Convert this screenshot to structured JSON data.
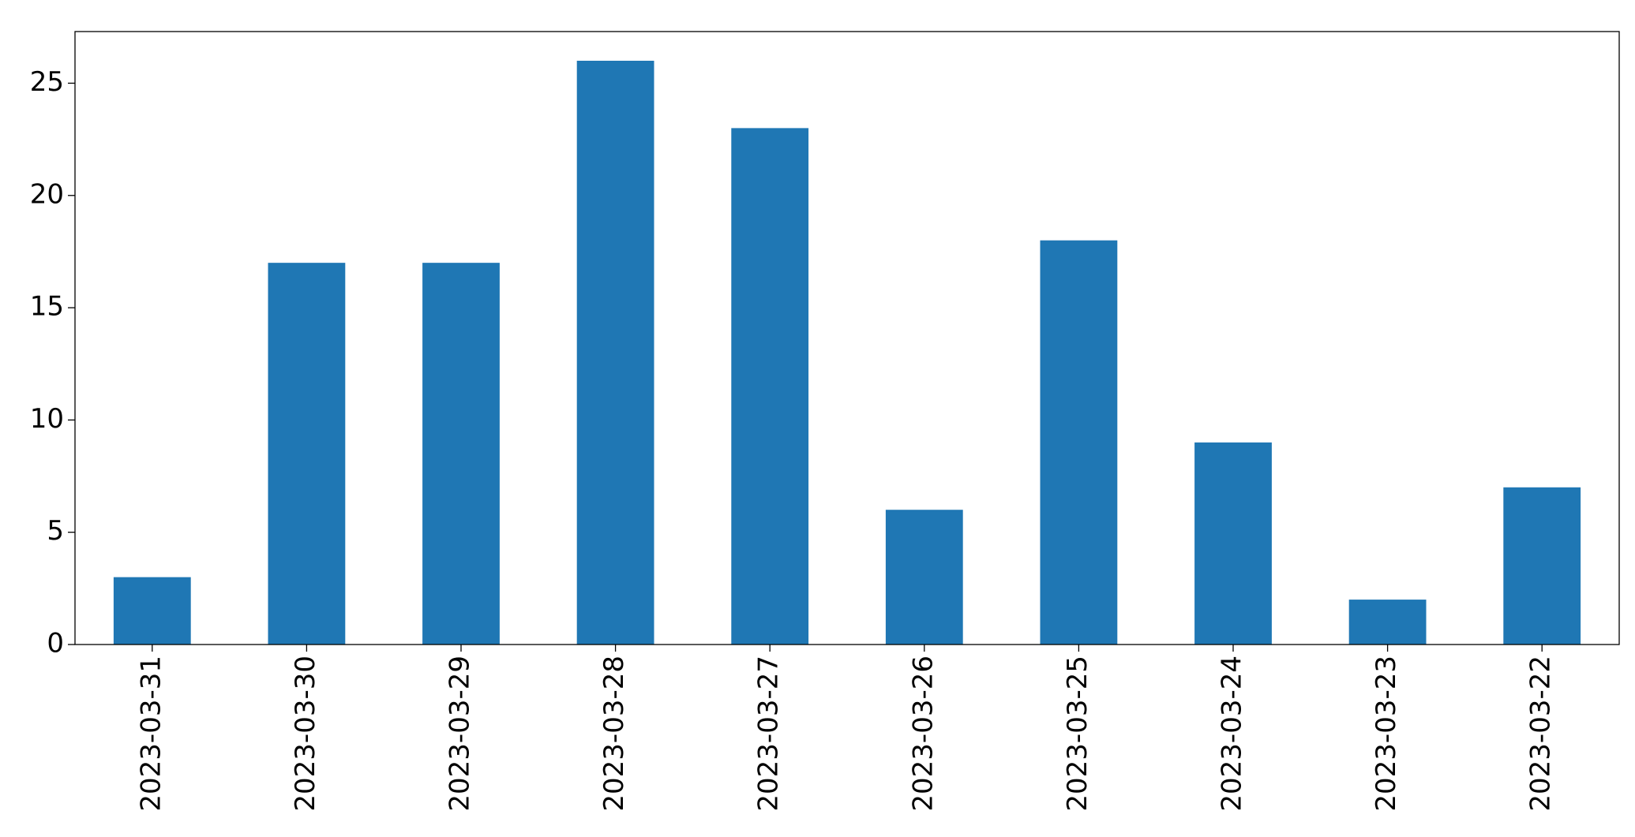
{
  "chart_data": {
    "type": "bar",
    "categories": [
      "2023-03-31",
      "2023-03-30",
      "2023-03-29",
      "2023-03-28",
      "2023-03-27",
      "2023-03-26",
      "2023-03-25",
      "2023-03-24",
      "2023-03-23",
      "2023-03-22"
    ],
    "values": [
      3,
      17,
      17,
      26,
      23,
      6,
      18,
      9,
      2,
      7
    ],
    "color": "#1f77b4",
    "ylim": [
      0,
      27.3
    ],
    "yticks": [
      0,
      5,
      10,
      15,
      20,
      25
    ],
    "grid": false
  }
}
